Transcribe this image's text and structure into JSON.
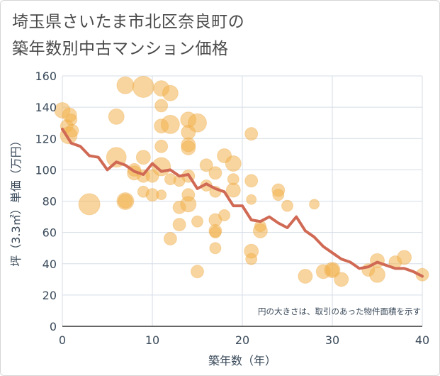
{
  "title_lines": [
    "埼玉県さいたま市北区奈良町の",
    "築年数別中古マンション価格"
  ],
  "chart_data": {
    "type": "scatter",
    "title": "埼玉県さいたま市北区奈良町の築年数別中古マンション価格",
    "xlabel": "築年数（年）",
    "ylabel": "坪（3.3㎡）単価（万円）",
    "xlim": [
      0,
      40
    ],
    "ylim": [
      0,
      160
    ],
    "xticks": [
      0,
      10,
      20,
      30,
      40
    ],
    "yticks": [
      0,
      20,
      40,
      60,
      80,
      100,
      120,
      140,
      160
    ],
    "grid": true,
    "note": "円の大きさは、取引のあった物件面積を示す",
    "colors": {
      "bubble": "#f3b24e",
      "line": "#d06a55",
      "grid": "#d5dde6"
    },
    "bubbles": [
      {
        "x": 0,
        "y": 138,
        "s": 11
      },
      {
        "x": 0.5,
        "y": 128,
        "s": 9
      },
      {
        "x": 0.7,
        "y": 122,
        "s": 12
      },
      {
        "x": 0.8,
        "y": 135,
        "s": 10
      },
      {
        "x": 1,
        "y": 132,
        "s": 8
      },
      {
        "x": 1.1,
        "y": 125,
        "s": 9
      },
      {
        "x": 3,
        "y": 78,
        "s": 15
      },
      {
        "x": 6,
        "y": 134,
        "s": 11
      },
      {
        "x": 6,
        "y": 108,
        "s": 14
      },
      {
        "x": 7,
        "y": 154,
        "s": 12
      },
      {
        "x": 7,
        "y": 80,
        "s": 12
      },
      {
        "x": 7,
        "y": 80,
        "s": 10
      },
      {
        "x": 8,
        "y": 98,
        "s": 10
      },
      {
        "x": 8,
        "y": 100,
        "s": 9
      },
      {
        "x": 9,
        "y": 153,
        "s": 15
      },
      {
        "x": 9,
        "y": 108,
        "s": 10
      },
      {
        "x": 9,
        "y": 96,
        "s": 9
      },
      {
        "x": 9,
        "y": 86,
        "s": 8
      },
      {
        "x": 10,
        "y": 96,
        "s": 9
      },
      {
        "x": 10,
        "y": 84,
        "s": 9
      },
      {
        "x": 11,
        "y": 152,
        "s": 11
      },
      {
        "x": 11,
        "y": 141,
        "s": 9
      },
      {
        "x": 11,
        "y": 128,
        "s": 10
      },
      {
        "x": 11,
        "y": 115,
        "s": 9
      },
      {
        "x": 11,
        "y": 102,
        "s": 13
      },
      {
        "x": 11,
        "y": 84,
        "s": 7
      },
      {
        "x": 12,
        "y": 149,
        "s": 11
      },
      {
        "x": 12,
        "y": 129,
        "s": 13
      },
      {
        "x": 12,
        "y": 94,
        "s": 8
      },
      {
        "x": 12,
        "y": 56,
        "s": 9
      },
      {
        "x": 13,
        "y": 93,
        "s": 8
      },
      {
        "x": 13,
        "y": 76,
        "s": 9
      },
      {
        "x": 13,
        "y": 65,
        "s": 9
      },
      {
        "x": 14,
        "y": 132,
        "s": 11
      },
      {
        "x": 14,
        "y": 124,
        "s": 10
      },
      {
        "x": 14,
        "y": 116,
        "s": 10
      },
      {
        "x": 14,
        "y": 114,
        "s": 10
      },
      {
        "x": 14,
        "y": 96,
        "s": 9
      },
      {
        "x": 14,
        "y": 84,
        "s": 9
      },
      {
        "x": 14,
        "y": 78,
        "s": 11
      },
      {
        "x": 15,
        "y": 130,
        "s": 13
      },
      {
        "x": 15,
        "y": 67,
        "s": 8
      },
      {
        "x": 15,
        "y": 35,
        "s": 9
      },
      {
        "x": 16,
        "y": 103,
        "s": 9
      },
      {
        "x": 16,
        "y": 90,
        "s": 8
      },
      {
        "x": 17,
        "y": 98,
        "s": 9
      },
      {
        "x": 17,
        "y": 86,
        "s": 8
      },
      {
        "x": 17,
        "y": 68,
        "s": 9
      },
      {
        "x": 17,
        "y": 61,
        "s": 9
      },
      {
        "x": 17,
        "y": 60,
        "s": 8
      },
      {
        "x": 17,
        "y": 50,
        "s": 8
      },
      {
        "x": 18,
        "y": 109,
        "s": 10
      },
      {
        "x": 18,
        "y": 71,
        "s": 8
      },
      {
        "x": 19,
        "y": 104,
        "s": 11
      },
      {
        "x": 19,
        "y": 94,
        "s": 8
      },
      {
        "x": 19,
        "y": 87,
        "s": 10
      },
      {
        "x": 21,
        "y": 123,
        "s": 9
      },
      {
        "x": 21,
        "y": 93,
        "s": 9
      },
      {
        "x": 21,
        "y": 81,
        "s": 7
      },
      {
        "x": 21,
        "y": 48,
        "s": 10
      },
      {
        "x": 21,
        "y": 43,
        "s": 8
      },
      {
        "x": 22,
        "y": 64,
        "s": 8
      },
      {
        "x": 22,
        "y": 61,
        "s": 10
      },
      {
        "x": 24,
        "y": 87,
        "s": 9
      },
      {
        "x": 24,
        "y": 84,
        "s": 8
      },
      {
        "x": 25,
        "y": 77,
        "s": 8
      },
      {
        "x": 27,
        "y": 32,
        "s": 10
      },
      {
        "x": 28,
        "y": 78,
        "s": 7
      },
      {
        "x": 29,
        "y": 35,
        "s": 10
      },
      {
        "x": 30,
        "y": 36,
        "s": 11
      },
      {
        "x": 30,
        "y": 36,
        "s": 9
      },
      {
        "x": 31,
        "y": 30,
        "s": 10
      },
      {
        "x": 34,
        "y": 36,
        "s": 9
      },
      {
        "x": 35,
        "y": 42,
        "s": 10
      },
      {
        "x": 35,
        "y": 33,
        "s": 11
      },
      {
        "x": 37,
        "y": 41,
        "s": 9
      },
      {
        "x": 38,
        "y": 44,
        "s": 10
      },
      {
        "x": 40,
        "y": 33,
        "s": 9
      }
    ],
    "series": [
      {
        "x": [
          0,
          1,
          2,
          3,
          4,
          5,
          6,
          7,
          8,
          9,
          10,
          11,
          12,
          13,
          14,
          15,
          16,
          17,
          18,
          19,
          20,
          21,
          22,
          23,
          24,
          25,
          26,
          27,
          28,
          29,
          30,
          31,
          32,
          33,
          34,
          35,
          36,
          37,
          38,
          39,
          40
        ],
        "y": [
          126,
          117,
          115,
          109,
          108,
          100,
          105,
          103,
          99,
          97,
          104,
          99,
          100,
          96,
          97,
          88,
          91,
          88,
          86,
          77,
          77,
          68,
          67,
          70,
          66,
          63,
          70,
          61,
          57,
          51,
          47,
          43,
          41,
          37,
          38,
          41,
          39,
          37,
          37,
          35,
          32
        ]
      }
    ]
  }
}
